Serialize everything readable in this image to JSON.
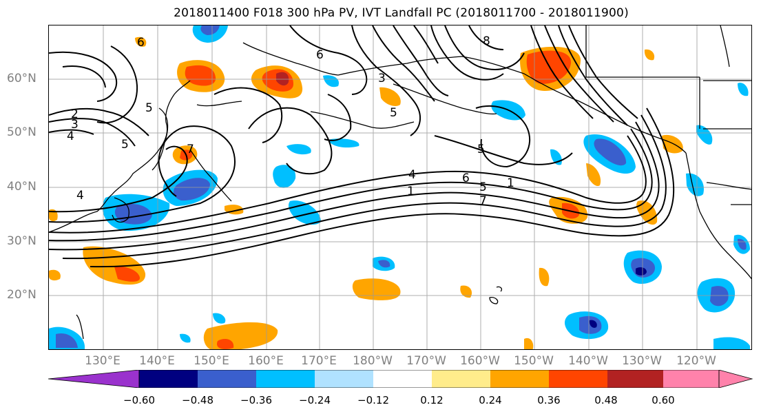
{
  "title": "2018011400 F018 300 hPa PV, IVT Landfall PC (2018011700 - 2018011900)",
  "latitude_labels": [
    "60°N",
    "50°N",
    "40°N",
    "30°N",
    "20°N"
  ],
  "longitude_labels": [
    "130°E",
    "140°E",
    "150°E",
    "160°E",
    "170°E",
    "180°W",
    "170°W",
    "160°W",
    "150°W",
    "140°W",
    "130°W",
    "120°W"
  ],
  "contour_labels": [
    "6",
    "6",
    "2",
    "3",
    "4",
    "5",
    "5",
    "7",
    "5",
    "5",
    "4",
    "6",
    "5",
    "1",
    "7",
    "1",
    "8",
    "3",
    "4"
  ],
  "colorbar": {
    "tick_labels": [
      "−0.60",
      "−0.48",
      "−0.36",
      "−0.24",
      "−0.12",
      "0.12",
      "0.24",
      "0.36",
      "0.48",
      "0.60"
    ],
    "colors": [
      "#9a32cd",
      "#000080",
      "#3a5fcd",
      "#00bfff",
      "#b0e2ff",
      "#ffffff",
      "#ffec8b",
      "#ffa500",
      "#ff4500",
      "#b22222",
      "#ff82ab"
    ]
  }
}
